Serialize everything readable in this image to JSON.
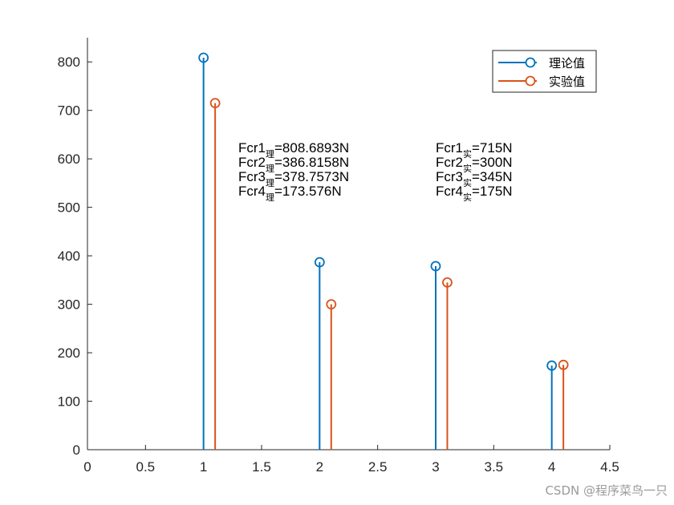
{
  "chart_data": {
    "type": "stem",
    "title": "",
    "xlabel": "",
    "ylabel": "",
    "xlim": [
      0,
      4.5
    ],
    "ylim": [
      0,
      850
    ],
    "x_ticks": [
      "0",
      "0.5",
      "1",
      "1.5",
      "2",
      "2.5",
      "3",
      "3.5",
      "4",
      "4.5"
    ],
    "y_ticks": [
      "0",
      "100",
      "200",
      "300",
      "400",
      "500",
      "600",
      "700",
      "800"
    ],
    "grid": false,
    "legend_placement": "top-right",
    "series": [
      {
        "name": "理论值",
        "color": "#0072BD",
        "x": [
          1,
          2,
          3,
          4
        ],
        "values": [
          808.6893,
          386.8158,
          378.7573,
          173.576
        ]
      },
      {
        "name": "实验值",
        "color": "#D95319",
        "x": [
          1.1,
          2.1,
          3.1,
          4.1
        ],
        "values": [
          715,
          300,
          345,
          175
        ]
      }
    ],
    "annotations": {
      "theory": [
        {
          "main": "Fcr1",
          "sub": "理",
          "value": "=808.6893N"
        },
        {
          "main": "Fcr2",
          "sub": "理",
          "value": "=386.8158N"
        },
        {
          "main": "Fcr3",
          "sub": "理",
          "value": "=378.7573N"
        },
        {
          "main": "Fcr4",
          "sub": "理",
          "value": "=173.576N"
        }
      ],
      "experiment": [
        {
          "main": "Fcr1",
          "sub": "实",
          "value": "=715N"
        },
        {
          "main": "Fcr2",
          "sub": "实",
          "value": "=300N"
        },
        {
          "main": "Fcr3",
          "sub": "实",
          "value": "=345N"
        },
        {
          "main": "Fcr4",
          "sub": "实",
          "value": "=175N"
        }
      ]
    }
  },
  "watermark": "CSDN @程序菜鸟一只"
}
